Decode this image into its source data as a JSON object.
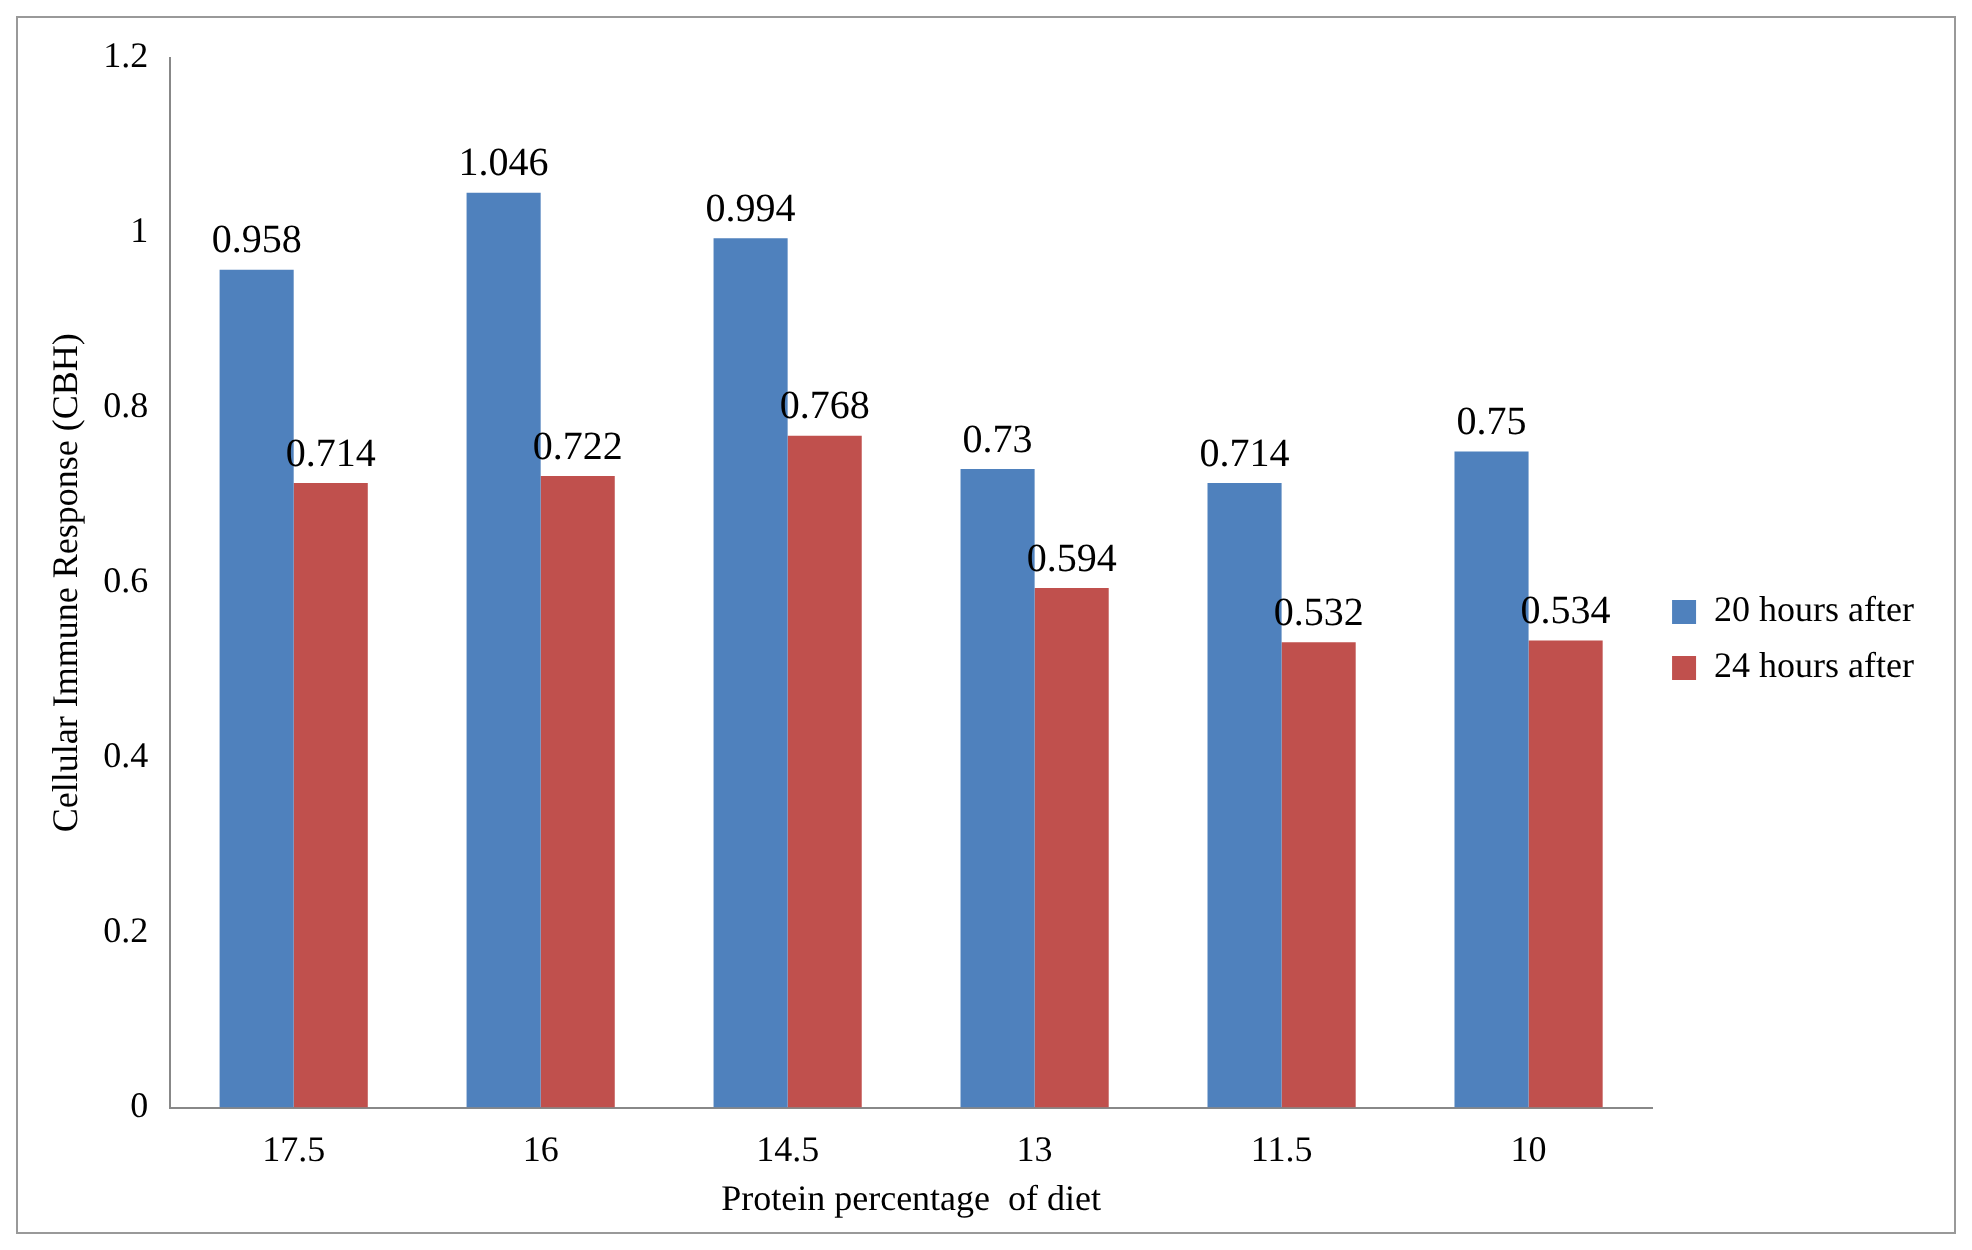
{
  "chart_data": {
    "type": "bar",
    "xlabel": "Protein percentage  of diet",
    "ylabel": "Cellular Immune Response (CBH)",
    "categories": [
      "17.5",
      "16",
      "14.5",
      "13",
      "11.5",
      "10"
    ],
    "series": [
      {
        "name": "20 hours after",
        "color": "#4f81bd",
        "values": [
          0.958,
          1.046,
          0.994,
          0.73,
          0.714,
          0.75
        ]
      },
      {
        "name": "24 hours after",
        "color": "#c0504d",
        "values": [
          0.714,
          0.722,
          0.768,
          0.594,
          0.532,
          0.534
        ]
      }
    ],
    "ylim": [
      0,
      1.2
    ],
    "yticks": [
      0,
      0.2,
      0.4,
      0.6,
      0.8,
      1,
      1.2
    ],
    "data_labels": true,
    "legend": "right"
  }
}
